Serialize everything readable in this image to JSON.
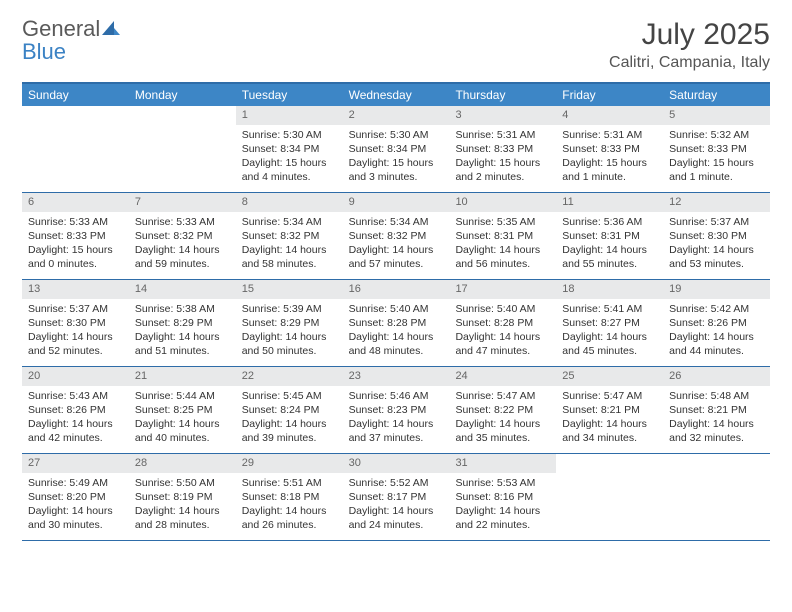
{
  "logo": {
    "text1": "General",
    "text2": "Blue"
  },
  "title": "July 2025",
  "location": "Calitri, Campania, Italy",
  "colors": {
    "header_bg": "#3d86c6",
    "border": "#2e6ca8",
    "daynum_bg": "#e8e9ea",
    "text": "#333333",
    "logo_gray": "#5a5a5a",
    "logo_blue": "#3b82c4"
  },
  "weekdays": [
    "Sunday",
    "Monday",
    "Tuesday",
    "Wednesday",
    "Thursday",
    "Friday",
    "Saturday"
  ],
  "weeks": [
    [
      null,
      null,
      {
        "n": "1",
        "sunrise": "5:30 AM",
        "sunset": "8:34 PM",
        "daylight": "15 hours and 4 minutes."
      },
      {
        "n": "2",
        "sunrise": "5:30 AM",
        "sunset": "8:34 PM",
        "daylight": "15 hours and 3 minutes."
      },
      {
        "n": "3",
        "sunrise": "5:31 AM",
        "sunset": "8:33 PM",
        "daylight": "15 hours and 2 minutes."
      },
      {
        "n": "4",
        "sunrise": "5:31 AM",
        "sunset": "8:33 PM",
        "daylight": "15 hours and 1 minute."
      },
      {
        "n": "5",
        "sunrise": "5:32 AM",
        "sunset": "8:33 PM",
        "daylight": "15 hours and 1 minute."
      }
    ],
    [
      {
        "n": "6",
        "sunrise": "5:33 AM",
        "sunset": "8:33 PM",
        "daylight": "15 hours and 0 minutes."
      },
      {
        "n": "7",
        "sunrise": "5:33 AM",
        "sunset": "8:32 PM",
        "daylight": "14 hours and 59 minutes."
      },
      {
        "n": "8",
        "sunrise": "5:34 AM",
        "sunset": "8:32 PM",
        "daylight": "14 hours and 58 minutes."
      },
      {
        "n": "9",
        "sunrise": "5:34 AM",
        "sunset": "8:32 PM",
        "daylight": "14 hours and 57 minutes."
      },
      {
        "n": "10",
        "sunrise": "5:35 AM",
        "sunset": "8:31 PM",
        "daylight": "14 hours and 56 minutes."
      },
      {
        "n": "11",
        "sunrise": "5:36 AM",
        "sunset": "8:31 PM",
        "daylight": "14 hours and 55 minutes."
      },
      {
        "n": "12",
        "sunrise": "5:37 AM",
        "sunset": "8:30 PM",
        "daylight": "14 hours and 53 minutes."
      }
    ],
    [
      {
        "n": "13",
        "sunrise": "5:37 AM",
        "sunset": "8:30 PM",
        "daylight": "14 hours and 52 minutes."
      },
      {
        "n": "14",
        "sunrise": "5:38 AM",
        "sunset": "8:29 PM",
        "daylight": "14 hours and 51 minutes."
      },
      {
        "n": "15",
        "sunrise": "5:39 AM",
        "sunset": "8:29 PM",
        "daylight": "14 hours and 50 minutes."
      },
      {
        "n": "16",
        "sunrise": "5:40 AM",
        "sunset": "8:28 PM",
        "daylight": "14 hours and 48 minutes."
      },
      {
        "n": "17",
        "sunrise": "5:40 AM",
        "sunset": "8:28 PM",
        "daylight": "14 hours and 47 minutes."
      },
      {
        "n": "18",
        "sunrise": "5:41 AM",
        "sunset": "8:27 PM",
        "daylight": "14 hours and 45 minutes."
      },
      {
        "n": "19",
        "sunrise": "5:42 AM",
        "sunset": "8:26 PM",
        "daylight": "14 hours and 44 minutes."
      }
    ],
    [
      {
        "n": "20",
        "sunrise": "5:43 AM",
        "sunset": "8:26 PM",
        "daylight": "14 hours and 42 minutes."
      },
      {
        "n": "21",
        "sunrise": "5:44 AM",
        "sunset": "8:25 PM",
        "daylight": "14 hours and 40 minutes."
      },
      {
        "n": "22",
        "sunrise": "5:45 AM",
        "sunset": "8:24 PM",
        "daylight": "14 hours and 39 minutes."
      },
      {
        "n": "23",
        "sunrise": "5:46 AM",
        "sunset": "8:23 PM",
        "daylight": "14 hours and 37 minutes."
      },
      {
        "n": "24",
        "sunrise": "5:47 AM",
        "sunset": "8:22 PM",
        "daylight": "14 hours and 35 minutes."
      },
      {
        "n": "25",
        "sunrise": "5:47 AM",
        "sunset": "8:21 PM",
        "daylight": "14 hours and 34 minutes."
      },
      {
        "n": "26",
        "sunrise": "5:48 AM",
        "sunset": "8:21 PM",
        "daylight": "14 hours and 32 minutes."
      }
    ],
    [
      {
        "n": "27",
        "sunrise": "5:49 AM",
        "sunset": "8:20 PM",
        "daylight": "14 hours and 30 minutes."
      },
      {
        "n": "28",
        "sunrise": "5:50 AM",
        "sunset": "8:19 PM",
        "daylight": "14 hours and 28 minutes."
      },
      {
        "n": "29",
        "sunrise": "5:51 AM",
        "sunset": "8:18 PM",
        "daylight": "14 hours and 26 minutes."
      },
      {
        "n": "30",
        "sunrise": "5:52 AM",
        "sunset": "8:17 PM",
        "daylight": "14 hours and 24 minutes."
      },
      {
        "n": "31",
        "sunrise": "5:53 AM",
        "sunset": "8:16 PM",
        "daylight": "14 hours and 22 minutes."
      },
      null,
      null
    ]
  ]
}
